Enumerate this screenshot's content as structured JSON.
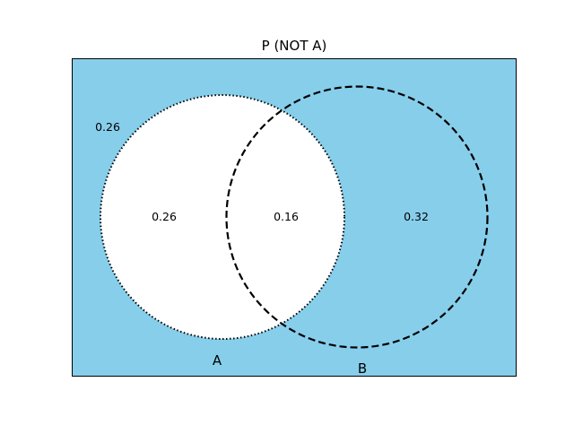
{
  "title": "P (NOT A)",
  "colors": {
    "highlight": "#87ceeb",
    "set_fill": "#ffffff",
    "outline": "#000000"
  },
  "regions": {
    "outside": "0.26",
    "a_only": "0.26",
    "a_and_b": "0.16",
    "b_only": "0.32"
  },
  "sets": {
    "a_label": "A",
    "b_label": "B"
  },
  "highlighted_event": "NOT A"
}
